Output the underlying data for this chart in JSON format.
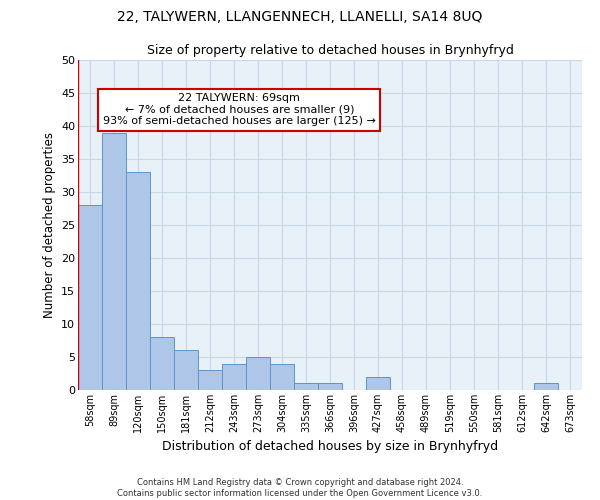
{
  "title": "22, TALYWERN, LLANGENNECH, LLANELLI, SA14 8UQ",
  "subtitle": "Size of property relative to detached houses in Brynhyfryd",
  "xlabel": "Distribution of detached houses by size in Brynhyfryd",
  "ylabel": "Number of detached properties",
  "categories": [
    "58sqm",
    "89sqm",
    "120sqm",
    "150sqm",
    "181sqm",
    "212sqm",
    "243sqm",
    "273sqm",
    "304sqm",
    "335sqm",
    "366sqm",
    "396sqm",
    "427sqm",
    "458sqm",
    "489sqm",
    "519sqm",
    "550sqm",
    "581sqm",
    "612sqm",
    "642sqm",
    "673sqm"
  ],
  "values": [
    28,
    39,
    33,
    8,
    6,
    3,
    4,
    5,
    4,
    1,
    1,
    0,
    2,
    0,
    0,
    0,
    0,
    0,
    0,
    1,
    0
  ],
  "bar_color": "#aec6e8",
  "bar_edge_color": "#5a96c8",
  "ylim": [
    0,
    50
  ],
  "yticks": [
    0,
    5,
    10,
    15,
    20,
    25,
    30,
    35,
    40,
    45,
    50
  ],
  "annotation_text": "22 TALYWERN: 69sqm\n← 7% of detached houses are smaller (9)\n93% of semi-detached houses are larger (125) →",
  "annotation_box_color": "#ffffff",
  "annotation_box_edge": "#cc0000",
  "footer": "Contains HM Land Registry data © Crown copyright and database right 2024.\nContains public sector information licensed under the Open Government Licence v3.0.",
  "grid_color": "#c8d8e8",
  "background_color": "#e8f0f8"
}
